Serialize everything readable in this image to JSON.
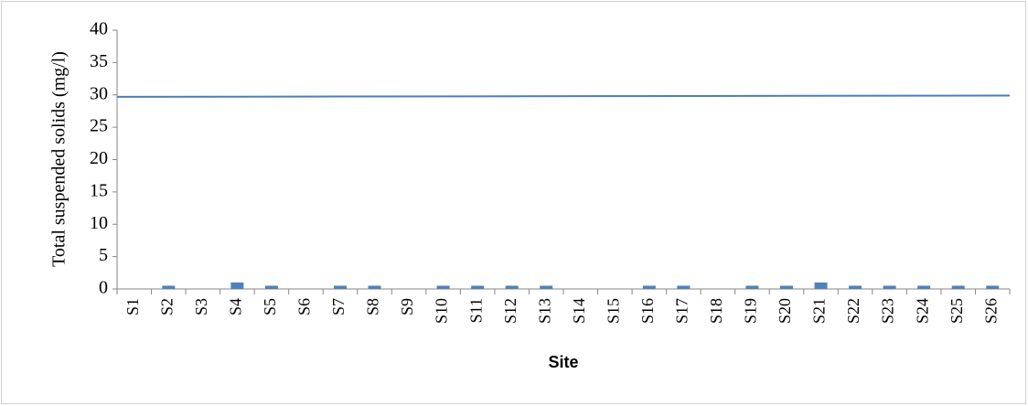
{
  "chart_data": {
    "type": "bar",
    "x_label": "Site",
    "y_label": "Total suspended solids (mg/l)",
    "categories": [
      "S1",
      "S2",
      "S3",
      "S4",
      "S5",
      "S6",
      "S7",
      "S8",
      "S9",
      "S10",
      "S11",
      "S12",
      "S13",
      "S14",
      "S15",
      "S16",
      "S17",
      "S18",
      "S19",
      "S20",
      "S21",
      "S22",
      "S23",
      "S24",
      "S25",
      "S26"
    ],
    "values": [
      0,
      0.5,
      0,
      1,
      0.5,
      0,
      0.5,
      0.5,
      0,
      0.5,
      0.5,
      0.5,
      0.5,
      0,
      0,
      0.5,
      0.5,
      0,
      0.5,
      0.5,
      1,
      0.5,
      0.5,
      0.5,
      0.5,
      0.5
    ],
    "color": "#4f81bd",
    "reference_line": {
      "values": [
        29.7,
        29.9
      ],
      "color": "#4a7ebb"
    },
    "ylim": [
      0,
      40
    ],
    "yticks": [
      0,
      5,
      10,
      15,
      20,
      25,
      30,
      35,
      40
    ],
    "grid": false
  }
}
